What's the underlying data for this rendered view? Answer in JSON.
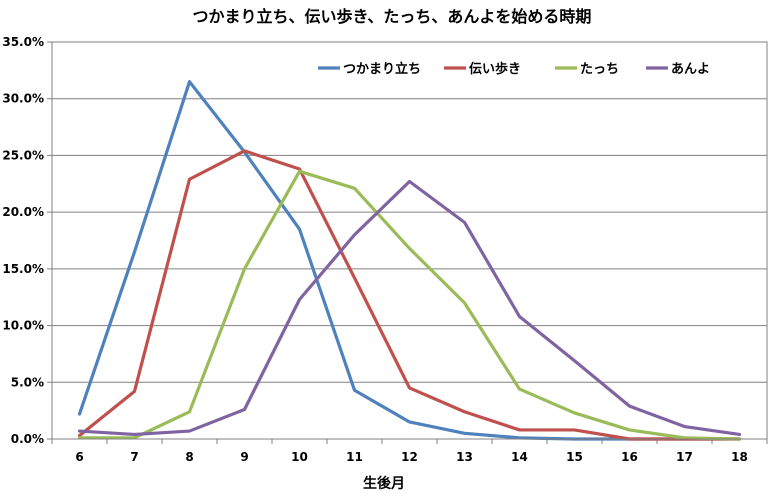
{
  "chart_data": {
    "type": "line",
    "title": "つかまり立ち、伝い歩き、たっち、あんよを始める時期",
    "xlabel": "生後月",
    "ylabel": "",
    "x": [
      6,
      7,
      8,
      9,
      10,
      11,
      12,
      13,
      14,
      15,
      16,
      17,
      18
    ],
    "x_tick_labels": [
      "6",
      "7",
      "8",
      "9",
      "10",
      "11",
      "12",
      "13",
      "14",
      "15",
      "16",
      "17",
      "18"
    ],
    "y_tick_labels": [
      "0.0%",
      "5.0%",
      "10.0%",
      "15.0%",
      "20.0%",
      "25.0%",
      "30.0%",
      "35.0%"
    ],
    "ylim": [
      0,
      35
    ],
    "y_unit": "%",
    "grid": "horizontal",
    "legend_position": "top-right",
    "series": [
      {
        "name": "つかまり立ち",
        "color": "#4f81bd",
        "values": [
          2.2,
          16.5,
          31.5,
          25.3,
          18.5,
          4.3,
          1.5,
          0.5,
          0.1,
          0.0,
          0.0,
          0.0,
          0.0
        ]
      },
      {
        "name": "伝い歩き",
        "color": "#c0504d",
        "values": [
          0.3,
          4.2,
          22.9,
          25.4,
          23.8,
          14.2,
          4.5,
          2.4,
          0.8,
          0.8,
          0.0,
          0.0,
          0.0
        ]
      },
      {
        "name": "たっち",
        "color": "#9bbb59",
        "values": [
          0.1,
          0.1,
          2.4,
          15.0,
          23.6,
          22.1,
          16.8,
          12.0,
          4.4,
          2.3,
          0.8,
          0.1,
          0.0
        ]
      },
      {
        "name": "あんよ",
        "color": "#8064a2",
        "values": [
          0.7,
          0.4,
          0.7,
          2.6,
          12.3,
          18.0,
          22.7,
          19.1,
          10.8,
          6.9,
          2.9,
          1.1,
          0.4
        ]
      }
    ]
  }
}
